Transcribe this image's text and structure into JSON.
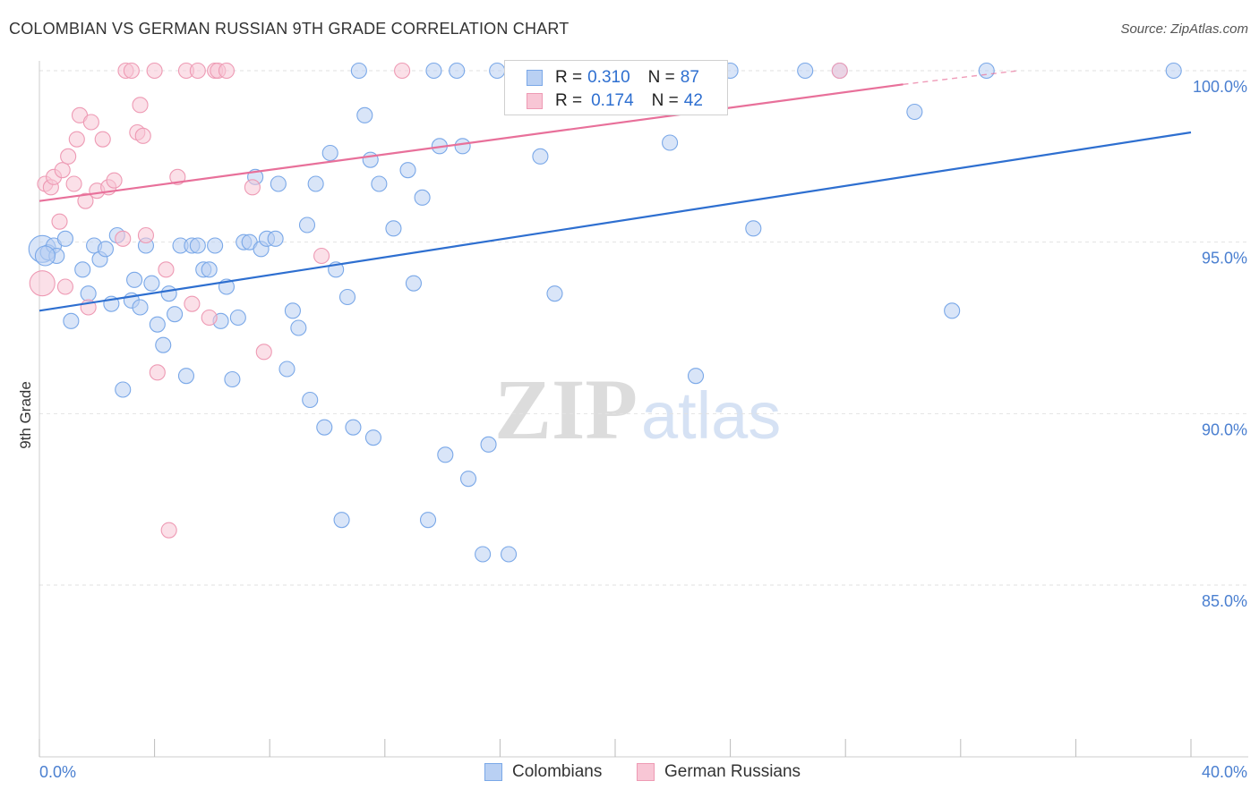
{
  "title": "COLOMBIAN VS GERMAN RUSSIAN 9TH GRADE CORRELATION CHART",
  "source": "Source: ZipAtlas.com",
  "watermark": {
    "zip": "ZIP",
    "atlas": "atlas"
  },
  "legend_top": {
    "rows": [
      {
        "r_label": "R =",
        "r_value": "0.310",
        "n_label": "N =",
        "n_value": "87",
        "color": "#7aa8e8",
        "fill": "#b9d0f3"
      },
      {
        "r_label": "R =",
        "r_value": "0.174",
        "n_label": "N =",
        "n_value": "42",
        "color": "#ee9ab4",
        "fill": "#f8c6d5"
      }
    ]
  },
  "legend_bottom": {
    "items": [
      {
        "label": "Colombians",
        "color": "#7aa8e8",
        "fill": "#b9d0f3"
      },
      {
        "label": "German Russians",
        "color": "#ee9ab4",
        "fill": "#f8c6d5"
      }
    ]
  },
  "chart_data": {
    "type": "scatter",
    "title": "COLOMBIAN VS GERMAN RUSSIAN 9TH GRADE CORRELATION CHART",
    "xlabel": "",
    "ylabel": "9th Grade",
    "xlim": [
      0,
      40
    ],
    "ylim": [
      80.2,
      100.6
    ],
    "x_tick_labels": [
      "0.0%",
      "40.0%"
    ],
    "y_ticks": [
      85,
      90,
      95,
      100
    ],
    "y_tick_labels": [
      "85.0%",
      "90.0%",
      "95.0%",
      "100.0%"
    ],
    "grid": "horizontal dashed",
    "legend_position": "top-center",
    "series": [
      {
        "name": "Colombians",
        "color": "#2e6fd0",
        "marker_fill": "#b9d0f3",
        "trend": {
          "x": [
            0,
            40
          ],
          "y": [
            93.0,
            98.2
          ]
        },
        "points": [
          [
            0.1,
            94.8
          ],
          [
            0.3,
            94.7
          ],
          [
            0.5,
            94.9
          ],
          [
            0.6,
            94.6
          ],
          [
            0.9,
            95.1
          ],
          [
            1.1,
            92.7
          ],
          [
            1.5,
            94.2
          ],
          [
            1.7,
            93.5
          ],
          [
            1.9,
            94.9
          ],
          [
            2.1,
            94.5
          ],
          [
            2.3,
            94.8
          ],
          [
            2.5,
            93.2
          ],
          [
            2.7,
            95.2
          ],
          [
            2.9,
            90.7
          ],
          [
            3.2,
            93.3
          ],
          [
            3.3,
            93.9
          ],
          [
            3.5,
            93.1
          ],
          [
            3.7,
            94.9
          ],
          [
            3.9,
            93.8
          ],
          [
            4.1,
            92.6
          ],
          [
            4.3,
            92.0
          ],
          [
            4.5,
            93.5
          ],
          [
            4.7,
            92.9
          ],
          [
            4.9,
            94.9
          ],
          [
            5.1,
            91.1
          ],
          [
            5.3,
            94.9
          ],
          [
            5.5,
            94.9
          ],
          [
            5.7,
            94.2
          ],
          [
            5.9,
            94.2
          ],
          [
            6.1,
            94.9
          ],
          [
            6.3,
            92.7
          ],
          [
            6.5,
            93.7
          ],
          [
            6.7,
            91.0
          ],
          [
            6.9,
            92.8
          ],
          [
            7.1,
            95.0
          ],
          [
            7.3,
            95.0
          ],
          [
            7.5,
            96.9
          ],
          [
            7.7,
            94.8
          ],
          [
            7.9,
            95.1
          ],
          [
            8.2,
            95.1
          ],
          [
            8.3,
            96.7
          ],
          [
            8.6,
            91.3
          ],
          [
            8.8,
            93.0
          ],
          [
            9.0,
            92.5
          ],
          [
            9.3,
            95.5
          ],
          [
            9.4,
            90.4
          ],
          [
            9.6,
            96.7
          ],
          [
            9.9,
            89.6
          ],
          [
            10.1,
            97.6
          ],
          [
            10.3,
            94.2
          ],
          [
            10.5,
            86.9
          ],
          [
            10.7,
            93.4
          ],
          [
            10.9,
            89.6
          ],
          [
            11.1,
            100.0
          ],
          [
            11.3,
            98.7
          ],
          [
            11.5,
            97.4
          ],
          [
            11.6,
            89.3
          ],
          [
            11.8,
            96.7
          ],
          [
            12.3,
            95.4
          ],
          [
            12.8,
            97.1
          ],
          [
            13.0,
            93.8
          ],
          [
            13.3,
            96.3
          ],
          [
            13.5,
            86.9
          ],
          [
            13.7,
            100.0
          ],
          [
            13.9,
            97.8
          ],
          [
            14.1,
            88.8
          ],
          [
            14.5,
            100.0
          ],
          [
            14.7,
            97.8
          ],
          [
            14.9,
            88.1
          ],
          [
            15.4,
            85.9
          ],
          [
            15.6,
            89.1
          ],
          [
            15.9,
            100.0
          ],
          [
            16.3,
            85.9
          ],
          [
            17.4,
            97.5
          ],
          [
            17.9,
            100.0
          ],
          [
            17.9,
            93.5
          ],
          [
            21.9,
            97.9
          ],
          [
            22.8,
            91.1
          ],
          [
            24.0,
            100.0
          ],
          [
            24.8,
            95.4
          ],
          [
            26.6,
            100.0
          ],
          [
            27.8,
            100.0
          ],
          [
            30.4,
            98.8
          ],
          [
            31.7,
            93.0
          ],
          [
            32.9,
            100.0
          ],
          [
            39.4,
            100.0
          ],
          [
            0.2,
            94.6
          ]
        ]
      },
      {
        "name": "German Russians",
        "color": "#e8709a",
        "marker_fill": "#f8c6d5",
        "trend": {
          "x": [
            0,
            30
          ],
          "y": [
            96.2,
            99.6
          ]
        },
        "trend_dashed": {
          "x": [
            30,
            34
          ],
          "y": [
            99.6,
            100.0
          ]
        },
        "points": [
          [
            0.1,
            93.8
          ],
          [
            0.2,
            96.7
          ],
          [
            0.4,
            96.6
          ],
          [
            0.5,
            96.9
          ],
          [
            0.7,
            95.6
          ],
          [
            0.8,
            97.1
          ],
          [
            0.9,
            93.7
          ],
          [
            1.0,
            97.5
          ],
          [
            1.2,
            96.7
          ],
          [
            1.3,
            98.0
          ],
          [
            1.4,
            98.7
          ],
          [
            1.6,
            96.2
          ],
          [
            1.7,
            93.1
          ],
          [
            1.8,
            98.5
          ],
          [
            2.0,
            96.5
          ],
          [
            2.2,
            98.0
          ],
          [
            2.4,
            96.6
          ],
          [
            2.6,
            96.8
          ],
          [
            2.9,
            95.1
          ],
          [
            3.0,
            100.0
          ],
          [
            3.2,
            100.0
          ],
          [
            3.4,
            98.2
          ],
          [
            3.5,
            99.0
          ],
          [
            3.6,
            98.1
          ],
          [
            3.7,
            95.2
          ],
          [
            4.0,
            100.0
          ],
          [
            4.1,
            91.2
          ],
          [
            4.4,
            94.2
          ],
          [
            4.5,
            86.6
          ],
          [
            4.8,
            96.9
          ],
          [
            5.1,
            100.0
          ],
          [
            5.3,
            93.2
          ],
          [
            5.5,
            100.0
          ],
          [
            5.9,
            92.8
          ],
          [
            6.1,
            100.0
          ],
          [
            6.2,
            100.0
          ],
          [
            6.5,
            100.0
          ],
          [
            7.4,
            96.6
          ],
          [
            7.8,
            91.8
          ],
          [
            9.8,
            94.6
          ],
          [
            12.6,
            100.0
          ],
          [
            27.8,
            100.0
          ]
        ]
      }
    ]
  }
}
